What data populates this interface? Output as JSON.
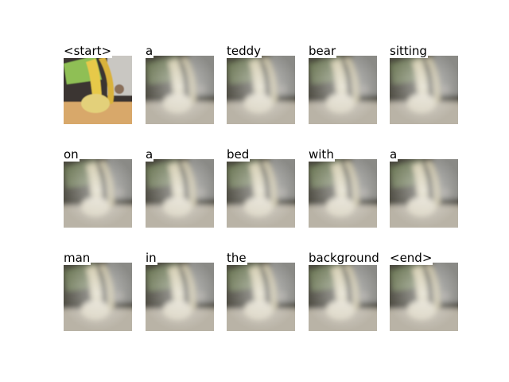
{
  "words": [
    "<start>",
    "a",
    "teddy",
    "bear",
    "sitting",
    "on",
    "a",
    "bed",
    "with",
    "a",
    "man",
    "in",
    "the",
    "background",
    "<end>"
  ]
}
